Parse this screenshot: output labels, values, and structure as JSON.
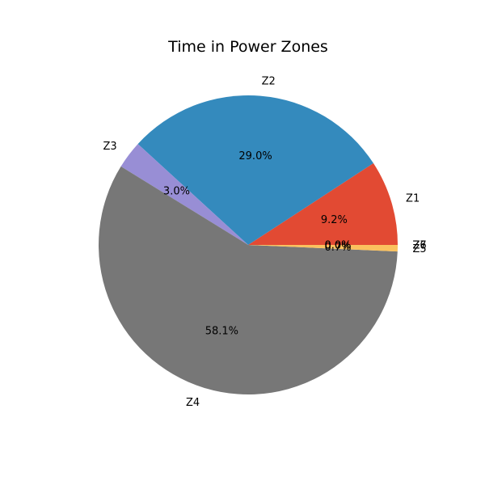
{
  "chart_data": {
    "type": "pie",
    "title": "Time in Power Zones",
    "start_angle_deg": 0,
    "direction": "counterclockwise",
    "slices": [
      {
        "label": "Z1",
        "value": 9.2,
        "pct_label": "9.2%",
        "color": "#E24A33"
      },
      {
        "label": "Z2",
        "value": 29.0,
        "pct_label": "29.0%",
        "color": "#348ABD"
      },
      {
        "label": "Z3",
        "value": 3.0,
        "pct_label": "3.0%",
        "color": "#988ED5"
      },
      {
        "label": "Z4",
        "value": 58.1,
        "pct_label": "58.1%",
        "color": "#777777"
      },
      {
        "label": "Z5",
        "value": 0.7,
        "pct_label": "0.7%",
        "color": "#FBC15E"
      },
      {
        "label": "Z6",
        "value": 0.0,
        "pct_label": "0.0%",
        "color": "#8EBA42"
      },
      {
        "label": "Z7",
        "value": 0.0,
        "pct_label": "0.0%",
        "color": "#FFB5B8"
      }
    ]
  }
}
